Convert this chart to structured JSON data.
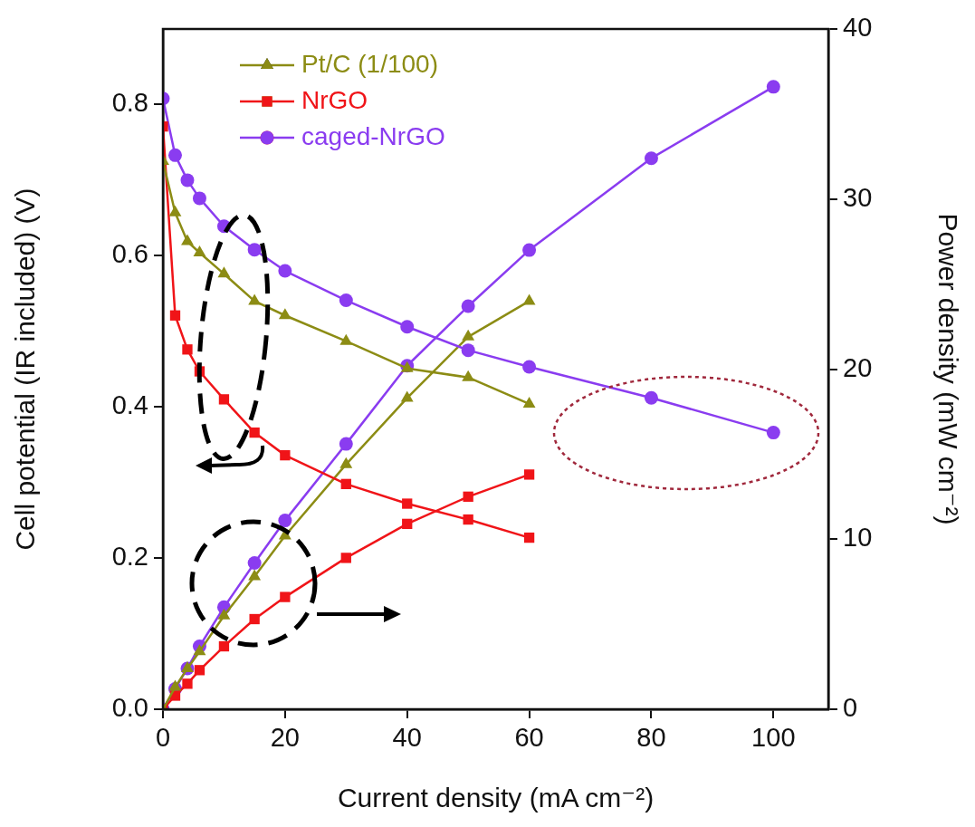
{
  "chart_data": {
    "type": "line",
    "xlabel": "Current density (mA cm⁻²)",
    "ylabel": "Cell potential (IR included) (V)",
    "y2label": "Power density (mW cm⁻²)",
    "x": [
      0,
      2,
      4,
      6,
      10,
      15,
      20,
      30,
      40,
      50,
      60
    ],
    "series": [
      {
        "name": "Pt/C (1/100)",
        "color": "#8c8c14",
        "marker": "triangle",
        "values": [
          0.725,
          0.657,
          0.619,
          0.604,
          0.576,
          0.54,
          0.521,
          0.487,
          0.451,
          0.439,
          0.404
        ]
      },
      {
        "name": "NrGO",
        "color": "#f01418",
        "marker": "square",
        "values": [
          0.771,
          0.521,
          0.476,
          0.447,
          0.41,
          0.366,
          0.336,
          0.298,
          0.272,
          0.251,
          0.227
        ]
      },
      {
        "name": "caged-NrGO",
        "color": "#8a3cf0",
        "marker": "circle",
        "x": [
          0,
          2,
          4,
          6,
          10,
          15,
          20,
          30,
          40,
          50,
          60,
          80,
          100
        ],
        "values": [
          0.808,
          0.733,
          0.7,
          0.676,
          0.639,
          0.608,
          0.58,
          0.541,
          0.506,
          0.475,
          0.453,
          0.412,
          0.366
        ]
      },
      {
        "color": "#8c8c14",
        "marker": "triangle",
        "axis": "y2",
        "values": [
          0,
          1.3,
          2.4,
          3.4,
          5.5,
          7.8,
          10.2,
          14.4,
          18.3,
          21.9,
          24.0
        ]
      },
      {
        "color": "#f01418",
        "marker": "square",
        "axis": "y2",
        "values": [
          0,
          0.8,
          1.5,
          2.3,
          3.7,
          5.3,
          6.6,
          8.9,
          10.9,
          12.5,
          13.8
        ]
      },
      {
        "color": "#8a3cf0",
        "marker": "circle",
        "axis": "y2",
        "x": [
          0,
          2,
          4,
          6,
          10,
          15,
          20,
          30,
          40,
          50,
          60,
          80,
          100
        ],
        "values": [
          0,
          1.2,
          2.4,
          3.7,
          6.0,
          8.6,
          11.1,
          15.6,
          20.2,
          23.7,
          27.0,
          32.4,
          36.6
        ]
      }
    ],
    "xlim": [
      0,
      109
    ],
    "xticks": [
      0,
      20,
      40,
      60,
      80,
      100
    ],
    "ylim": [
      0,
      0.9
    ],
    "yticks": [
      {
        "value": 0,
        "label": "0.0"
      },
      0.2,
      0.4,
      0.6,
      0.8
    ],
    "y2lim": [
      0,
      40
    ],
    "y2ticks": [
      0,
      10,
      20,
      30,
      40
    ],
    "legend": "top left",
    "grid": false,
    "line_style": "solid"
  }
}
